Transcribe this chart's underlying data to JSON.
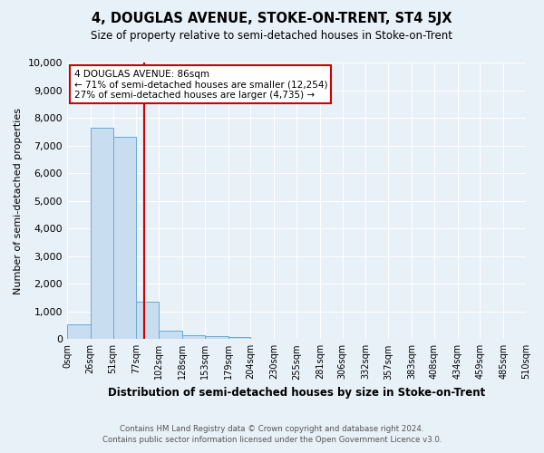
{
  "title": "4, DOUGLAS AVENUE, STOKE-ON-TRENT, ST4 5JX",
  "subtitle": "Size of property relative to semi-detached houses in Stoke-on-Trent",
  "xlabel": "Distribution of semi-detached houses by size in Stoke-on-Trent",
  "ylabel": "Number of semi-detached properties",
  "footer1": "Contains HM Land Registry data © Crown copyright and database right 2024.",
  "footer2": "Contains public sector information licensed under the Open Government Licence v3.0.",
  "bin_labels": [
    "0sqm",
    "26sqm",
    "51sqm",
    "77sqm",
    "102sqm",
    "128sqm",
    "153sqm",
    "179sqm",
    "204sqm",
    "230sqm",
    "255sqm",
    "281sqm",
    "306sqm",
    "332sqm",
    "357sqm",
    "383sqm",
    "408sqm",
    "434sqm",
    "459sqm",
    "485sqm",
    "510sqm"
  ],
  "bar_values": [
    550,
    7650,
    7300,
    1350,
    310,
    155,
    100,
    80,
    0,
    0,
    0,
    0,
    0,
    0,
    0,
    0,
    0,
    0,
    0,
    0
  ],
  "bar_color": "#c8ddf0",
  "bar_edge_color": "#6aaad4",
  "vline_x": 86,
  "vline_color": "#cc0000",
  "ylim": [
    0,
    10000
  ],
  "yticks": [
    0,
    1000,
    2000,
    3000,
    4000,
    5000,
    6000,
    7000,
    8000,
    9000,
    10000
  ],
  "annotation_title": "4 DOUGLAS AVENUE: 86sqm",
  "annotation_line1": "← 71% of semi-detached houses are smaller (12,254)",
  "annotation_line2": "27% of semi-detached houses are larger (4,735) →",
  "annotation_box_color": "#ffffff",
  "annotation_box_edge": "#cc0000",
  "bg_color": "#e8f0f8",
  "grid_color": "#ffffff",
  "property_size_sqm": 86,
  "bin_edges": [
    0,
    26,
    51,
    77,
    102,
    128,
    153,
    179,
    204,
    230,
    255,
    281,
    306,
    332,
    357,
    383,
    408,
    434,
    459,
    485,
    510
  ]
}
